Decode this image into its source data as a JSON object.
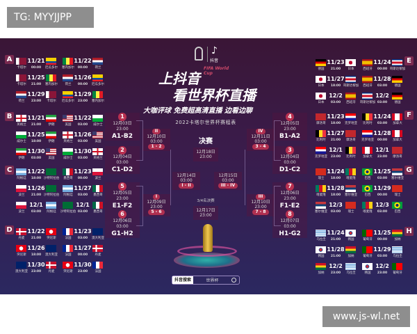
{
  "overlay": {
    "tag": "TG: MYYJJPP",
    "watermark": "www.js-wl.net"
  },
  "header": {
    "logo_text": "抖音",
    "fifa": "FIFA World Cup",
    "headline1": "上抖音",
    "headline2": "看世界杯直播",
    "tagline": "大咖评球 免费超高清直播 边看边聊",
    "schedule_title": "2022卡塔尔世界杯赛程表"
  },
  "groups": [
    {
      "letter": "A",
      "matches": [
        [
          "QAT",
          "卡塔尔",
          "11/21",
          "00:00",
          "ECU",
          "厄瓜多尔"
        ],
        [
          "SEN",
          "塞内加尔",
          "11/22",
          "00:00",
          "NED",
          "荷兰"
        ],
        [
          "QAT",
          "卡塔尔",
          "11/25",
          "21:00",
          "SEN",
          "塞内加尔"
        ],
        [
          "NED",
          "荷兰",
          "11/26",
          "00:00",
          "ECU",
          "厄瓜多尔"
        ],
        [
          "NED",
          "荷兰",
          "11/29",
          "23:00",
          "QAT",
          "卡塔尔"
        ],
        [
          "ECU",
          "厄瓜多尔",
          "11/29",
          "23:00",
          "SEN",
          "塞内加尔"
        ]
      ]
    },
    {
      "letter": "B",
      "matches": [
        [
          "ENG",
          "英格兰",
          "11/21",
          "21:00",
          "IRN",
          "伊朗"
        ],
        [
          "USA",
          "美国",
          "11/22",
          "03:00",
          "WAL",
          "威尔士"
        ],
        [
          "WAL",
          "威尔士",
          "11/25",
          "18:00",
          "IRN",
          "伊朗"
        ],
        [
          "ENG",
          "英格兰",
          "11/26",
          "03:00",
          "USA",
          "美国"
        ],
        [
          "IRN",
          "伊朗",
          "11/30",
          "03:00",
          "USA",
          "美国"
        ],
        [
          "WAL",
          "威尔士",
          "11/30",
          "03:00",
          "ENG",
          "英格兰"
        ]
      ]
    },
    {
      "letter": "C",
      "matches": [
        [
          "ARG",
          "阿根廷",
          "11/22",
          "18:00",
          "KSA",
          "沙特阿拉伯"
        ],
        [
          "MEX",
          "墨西哥",
          "11/23",
          "00:00",
          "POL",
          "波兰"
        ],
        [
          "POL",
          "波兰",
          "11/26",
          "21:00",
          "KSA",
          "沙特阿拉伯"
        ],
        [
          "ARG",
          "阿根廷",
          "11/27",
          "03:00",
          "MEX",
          "墨西哥"
        ],
        [
          "POL",
          "波兰",
          "12/1",
          "03:00",
          "ARG",
          "阿根廷"
        ],
        [
          "KSA",
          "沙特阿拉伯",
          "12/1",
          "03:00",
          "MEX",
          "墨西哥"
        ]
      ]
    },
    {
      "letter": "D",
      "matches": [
        [
          "DEN",
          "丹麦",
          "11/22",
          "21:00",
          "TUN",
          "突尼斯"
        ],
        [
          "FRA",
          "法国",
          "11/23",
          "03:00",
          "AUS",
          "澳大利亚"
        ],
        [
          "TUN",
          "突尼斯",
          "11/26",
          "18:00",
          "AUS",
          "澳大利亚"
        ],
        [
          "FRA",
          "法国",
          "11/27",
          "00:00",
          "DEN",
          "丹麦"
        ],
        [
          "AUS",
          "澳大利亚",
          "11/30",
          "23:00",
          "DEN",
          "丹麦"
        ],
        [
          "TUN",
          "突尼斯",
          "11/30",
          "23:00",
          "FRA",
          "法国"
        ]
      ]
    },
    {
      "letter": "E",
      "matches": [
        [
          "GER",
          "德国",
          "11/23",
          "21:00",
          "JPN",
          "日本"
        ],
        [
          "ESP",
          "西班牙",
          "11/24",
          "00:00",
          "CRC",
          "哥斯达黎加"
        ],
        [
          "JPN",
          "日本",
          "11/27",
          "18:00",
          "CRC",
          "哥斯达黎加"
        ],
        [
          "ESP",
          "西班牙",
          "11/28",
          "03:00",
          "GER",
          "德国"
        ],
        [
          "JPN",
          "日本",
          "12/2",
          "03:00",
          "ESP",
          "西班牙"
        ],
        [
          "CRC",
          "哥斯达黎加",
          "12/2",
          "03:00",
          "GER",
          "德国"
        ]
      ]
    },
    {
      "letter": "F",
      "matches": [
        [
          "MAR",
          "摩洛哥",
          "11/23",
          "18:00",
          "CRO",
          "克罗地亚"
        ],
        [
          "BEL",
          "比利时",
          "11/24",
          "03:00",
          "CAN",
          "加拿大"
        ],
        [
          "BEL",
          "比利时",
          "11/27",
          "21:00",
          "MAR",
          "摩洛哥"
        ],
        [
          "CRO",
          "克罗地亚",
          "11/28",
          "00:00",
          "CAN",
          "加拿大"
        ],
        [
          "CRO",
          "克罗地亚",
          "12/1",
          "23:00",
          "BEL",
          "比利时"
        ],
        [
          "CAN",
          "加拿大",
          "12/1",
          "23:00",
          "MAR",
          "摩洛哥"
        ]
      ]
    },
    {
      "letter": "G",
      "matches": [
        [
          "SUI",
          "瑞士",
          "11/24",
          "18:00",
          "CMR",
          "喀麦隆"
        ],
        [
          "BRA",
          "巴西",
          "11/25",
          "03:00",
          "SRB",
          "塞尔维亚"
        ],
        [
          "CMR",
          "喀麦隆",
          "11/28",
          "18:00",
          "SRB",
          "塞尔维亚"
        ],
        [
          "BRA",
          "巴西",
          "11/29",
          "00:00",
          "SUI",
          "瑞士"
        ],
        [
          "SRB",
          "塞尔维亚",
          "12/3",
          "03:00",
          "SUI",
          "瑞士"
        ],
        [
          "CMR",
          "喀麦隆",
          "12/3",
          "03:00",
          "BRA",
          "巴西"
        ]
      ]
    },
    {
      "letter": "H",
      "matches": [
        [
          "URU",
          "乌拉圭",
          "11/24",
          "21:00",
          "KOR",
          "韩国"
        ],
        [
          "POR",
          "葡萄牙",
          "11/25",
          "00:00",
          "GHA",
          "加纳"
        ],
        [
          "KOR",
          "韩国",
          "11/28",
          "21:00",
          "GHA",
          "加纳"
        ],
        [
          "POR",
          "葡萄牙",
          "11/29",
          "03:00",
          "URU",
          "乌拉圭"
        ],
        [
          "GHA",
          "加纳",
          "12/2",
          "23:00",
          "URU",
          "乌拉圭"
        ],
        [
          "KOR",
          "韩国",
          "12/2",
          "23:00",
          "POR",
          "葡萄牙"
        ]
      ]
    }
  ],
  "round16": [
    {
      "num": "1",
      "date": "12月03日",
      "time": "23:00",
      "pair": "A1-B2"
    },
    {
      "num": "2",
      "date": "12月04日",
      "time": "03:00",
      "pair": "C1-D2"
    },
    {
      "num": "5",
      "date": "12月05日",
      "time": "23:00",
      "pair": "E1-F2"
    },
    {
      "num": "6",
      "date": "12月06日",
      "time": "03:00",
      "pair": "G1-H2"
    },
    {
      "num": "4",
      "date": "12月05日",
      "time": "23:00",
      "pair": "B1-A2"
    },
    {
      "num": "3",
      "date": "12月04日",
      "time": "03:00",
      "pair": "D1-C2"
    },
    {
      "num": "7",
      "date": "12月06日",
      "time": "23:00",
      "pair": "F1-E2"
    },
    {
      "num": "8",
      "date": "12月07日",
      "time": "03:00",
      "pair": "H1-G2"
    }
  ],
  "quarter": [
    {
      "num": "II",
      "date": "12月10日",
      "time": "03:00",
      "pair": "1 - 2"
    },
    {
      "num": "I",
      "date": "12月09日",
      "time": "23:00",
      "pair": "5 - 6"
    },
    {
      "num": "IV",
      "date": "12月11日",
      "time": "03:00",
      "pair": "3 - 4"
    },
    {
      "num": "III",
      "date": "12月10日",
      "time": "23:00",
      "pair": "7 - 8"
    }
  ],
  "semi": [
    {
      "date": "12月14日",
      "time": "03:00",
      "pair": "I - II"
    },
    {
      "date": "12月15日",
      "time": "03:00",
      "pair": "III - IV"
    }
  ],
  "final": {
    "title": "决赛",
    "date": "12月18日",
    "time": "23:00"
  },
  "third": {
    "title": "3/4名决赛",
    "date": "12月17日",
    "time": "23:00"
  },
  "search": {
    "brand": "抖音搜索",
    "query": "世界杯",
    "icon": "search-icon"
  }
}
